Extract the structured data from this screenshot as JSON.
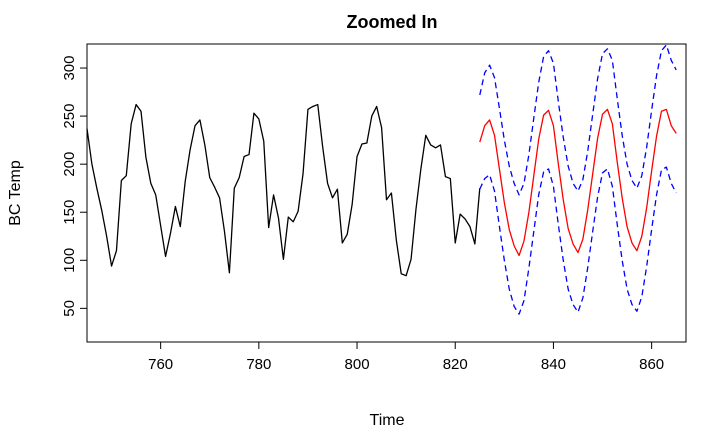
{
  "chart_data": {
    "type": "line",
    "title": "Zoomed In",
    "xlabel": "Time",
    "ylabel": "BC Temp",
    "xlim": [
      745,
      867
    ],
    "ylim": [
      15,
      325
    ],
    "x_ticks": [
      760,
      780,
      800,
      820,
      840,
      860
    ],
    "y_ticks": [
      50,
      100,
      150,
      200,
      250,
      300
    ],
    "grid": false,
    "legend": "none",
    "series": [
      {
        "role": "observed",
        "color": "#000000",
        "line": "solid",
        "x": [
          745,
          746,
          747,
          748,
          749,
          750,
          751,
          752,
          753,
          754,
          755,
          756,
          757,
          758,
          759,
          760,
          761,
          762,
          763,
          764,
          765,
          766,
          767,
          768,
          769,
          770,
          771,
          772,
          773,
          774,
          775,
          776,
          777,
          778,
          779,
          780,
          781,
          782,
          783,
          784,
          785,
          786,
          787,
          788,
          789,
          790,
          791,
          792,
          793,
          794,
          795,
          796,
          797,
          798,
          799,
          800,
          801,
          802,
          803,
          804,
          805,
          806,
          807,
          808,
          809,
          810,
          811,
          812,
          813,
          814,
          815,
          816,
          817,
          818,
          819,
          820,
          821,
          822,
          823,
          824,
          825
        ],
        "y": [
          237,
          200,
          175,
          152,
          125,
          94,
          110,
          183,
          188,
          242,
          262,
          255,
          207,
          180,
          168,
          136,
          104,
          128,
          156,
          135,
          182,
          215,
          240,
          246,
          220,
          186,
          176,
          165,
          130,
          87,
          175,
          186,
          208,
          210,
          253,
          247,
          224,
          134,
          168,
          144,
          101,
          145,
          140,
          151,
          190,
          257,
          260,
          262,
          218,
          180,
          165,
          174,
          118,
          127,
          158,
          208,
          221,
          222,
          250,
          260,
          238,
          163,
          170,
          121,
          86,
          84,
          101,
          153,
          195,
          230,
          220,
          217,
          220,
          187,
          185,
          118,
          148,
          143,
          135,
          117,
          175
        ]
      },
      {
        "role": "forecast",
        "color": "#ff0000",
        "line": "solid",
        "x": [
          825,
          826,
          827,
          828,
          829,
          830,
          831,
          832,
          833,
          834,
          835,
          836,
          837,
          838,
          839,
          840,
          841,
          842,
          843,
          844,
          845,
          846,
          847,
          848,
          849,
          850,
          851,
          852,
          853,
          854,
          855,
          856,
          857,
          858,
          859,
          860,
          861,
          862,
          863,
          864,
          865
        ],
        "y": [
          223,
          240,
          246,
          230,
          195,
          160,
          132,
          115,
          105,
          120,
          150,
          188,
          226,
          251,
          256,
          240,
          200,
          163,
          133,
          117,
          108,
          122,
          153,
          190,
          227,
          252,
          257,
          242,
          202,
          165,
          135,
          118,
          110,
          125,
          155,
          193,
          229,
          255,
          257,
          240,
          232
        ]
      },
      {
        "role": "upper-bound",
        "color": "#0000ff",
        "line": "dashed",
        "x": [
          825,
          826,
          827,
          828,
          829,
          830,
          831,
          832,
          833,
          834,
          835,
          836,
          837,
          838,
          839,
          840,
          841,
          842,
          843,
          844,
          845,
          846,
          847,
          848,
          849,
          850,
          851,
          852,
          853,
          854,
          855,
          856,
          857,
          858,
          859,
          860,
          861,
          862,
          863,
          864,
          865
        ],
        "y": [
          272,
          295,
          303,
          290,
          258,
          225,
          198,
          180,
          168,
          180,
          210,
          248,
          285,
          312,
          318,
          305,
          265,
          228,
          198,
          180,
          172,
          184,
          214,
          252,
          289,
          315,
          320,
          308,
          268,
          230,
          200,
          183,
          175,
          188,
          218,
          256,
          292,
          318,
          324,
          308,
          298
        ]
      },
      {
        "role": "lower-bound",
        "color": "#0000ff",
        "line": "dashed",
        "x": [
          825,
          826,
          827,
          828,
          829,
          830,
          831,
          832,
          833,
          834,
          835,
          836,
          837,
          838,
          839,
          840,
          841,
          842,
          843,
          844,
          845,
          846,
          847,
          848,
          849,
          850,
          851,
          852,
          853,
          854,
          855,
          856,
          857,
          858,
          859,
          860,
          861,
          862,
          863,
          864,
          865
        ],
        "y": [
          174,
          185,
          189,
          172,
          135,
          100,
          70,
          52,
          44,
          58,
          92,
          130,
          168,
          192,
          195,
          177,
          137,
          100,
          70,
          54,
          46,
          61,
          93,
          130,
          166,
          191,
          195,
          177,
          137,
          100,
          70,
          54,
          47,
          62,
          94,
          132,
          168,
          194,
          197,
          180,
          170
        ]
      }
    ]
  }
}
